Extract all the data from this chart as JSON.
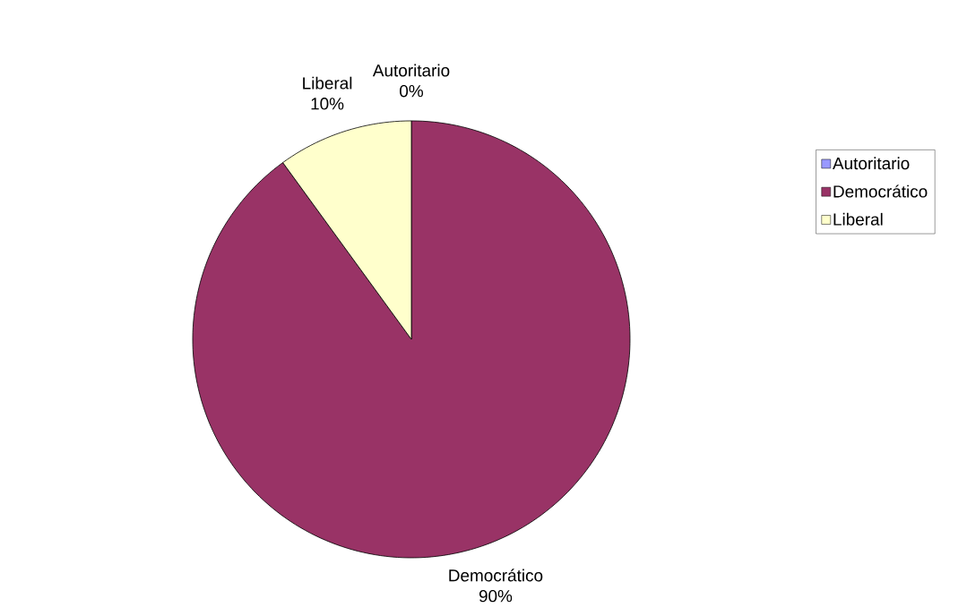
{
  "chart_data": {
    "type": "pie",
    "categories": [
      "Autoritario",
      "Democrático",
      "Liberal"
    ],
    "values": [
      0,
      90,
      10
    ],
    "value_labels": [
      "0%",
      "90%",
      "10%"
    ],
    "colors": [
      "#9999ff",
      "#993366",
      "#ffffcc"
    ],
    "legend": "top right"
  }
}
